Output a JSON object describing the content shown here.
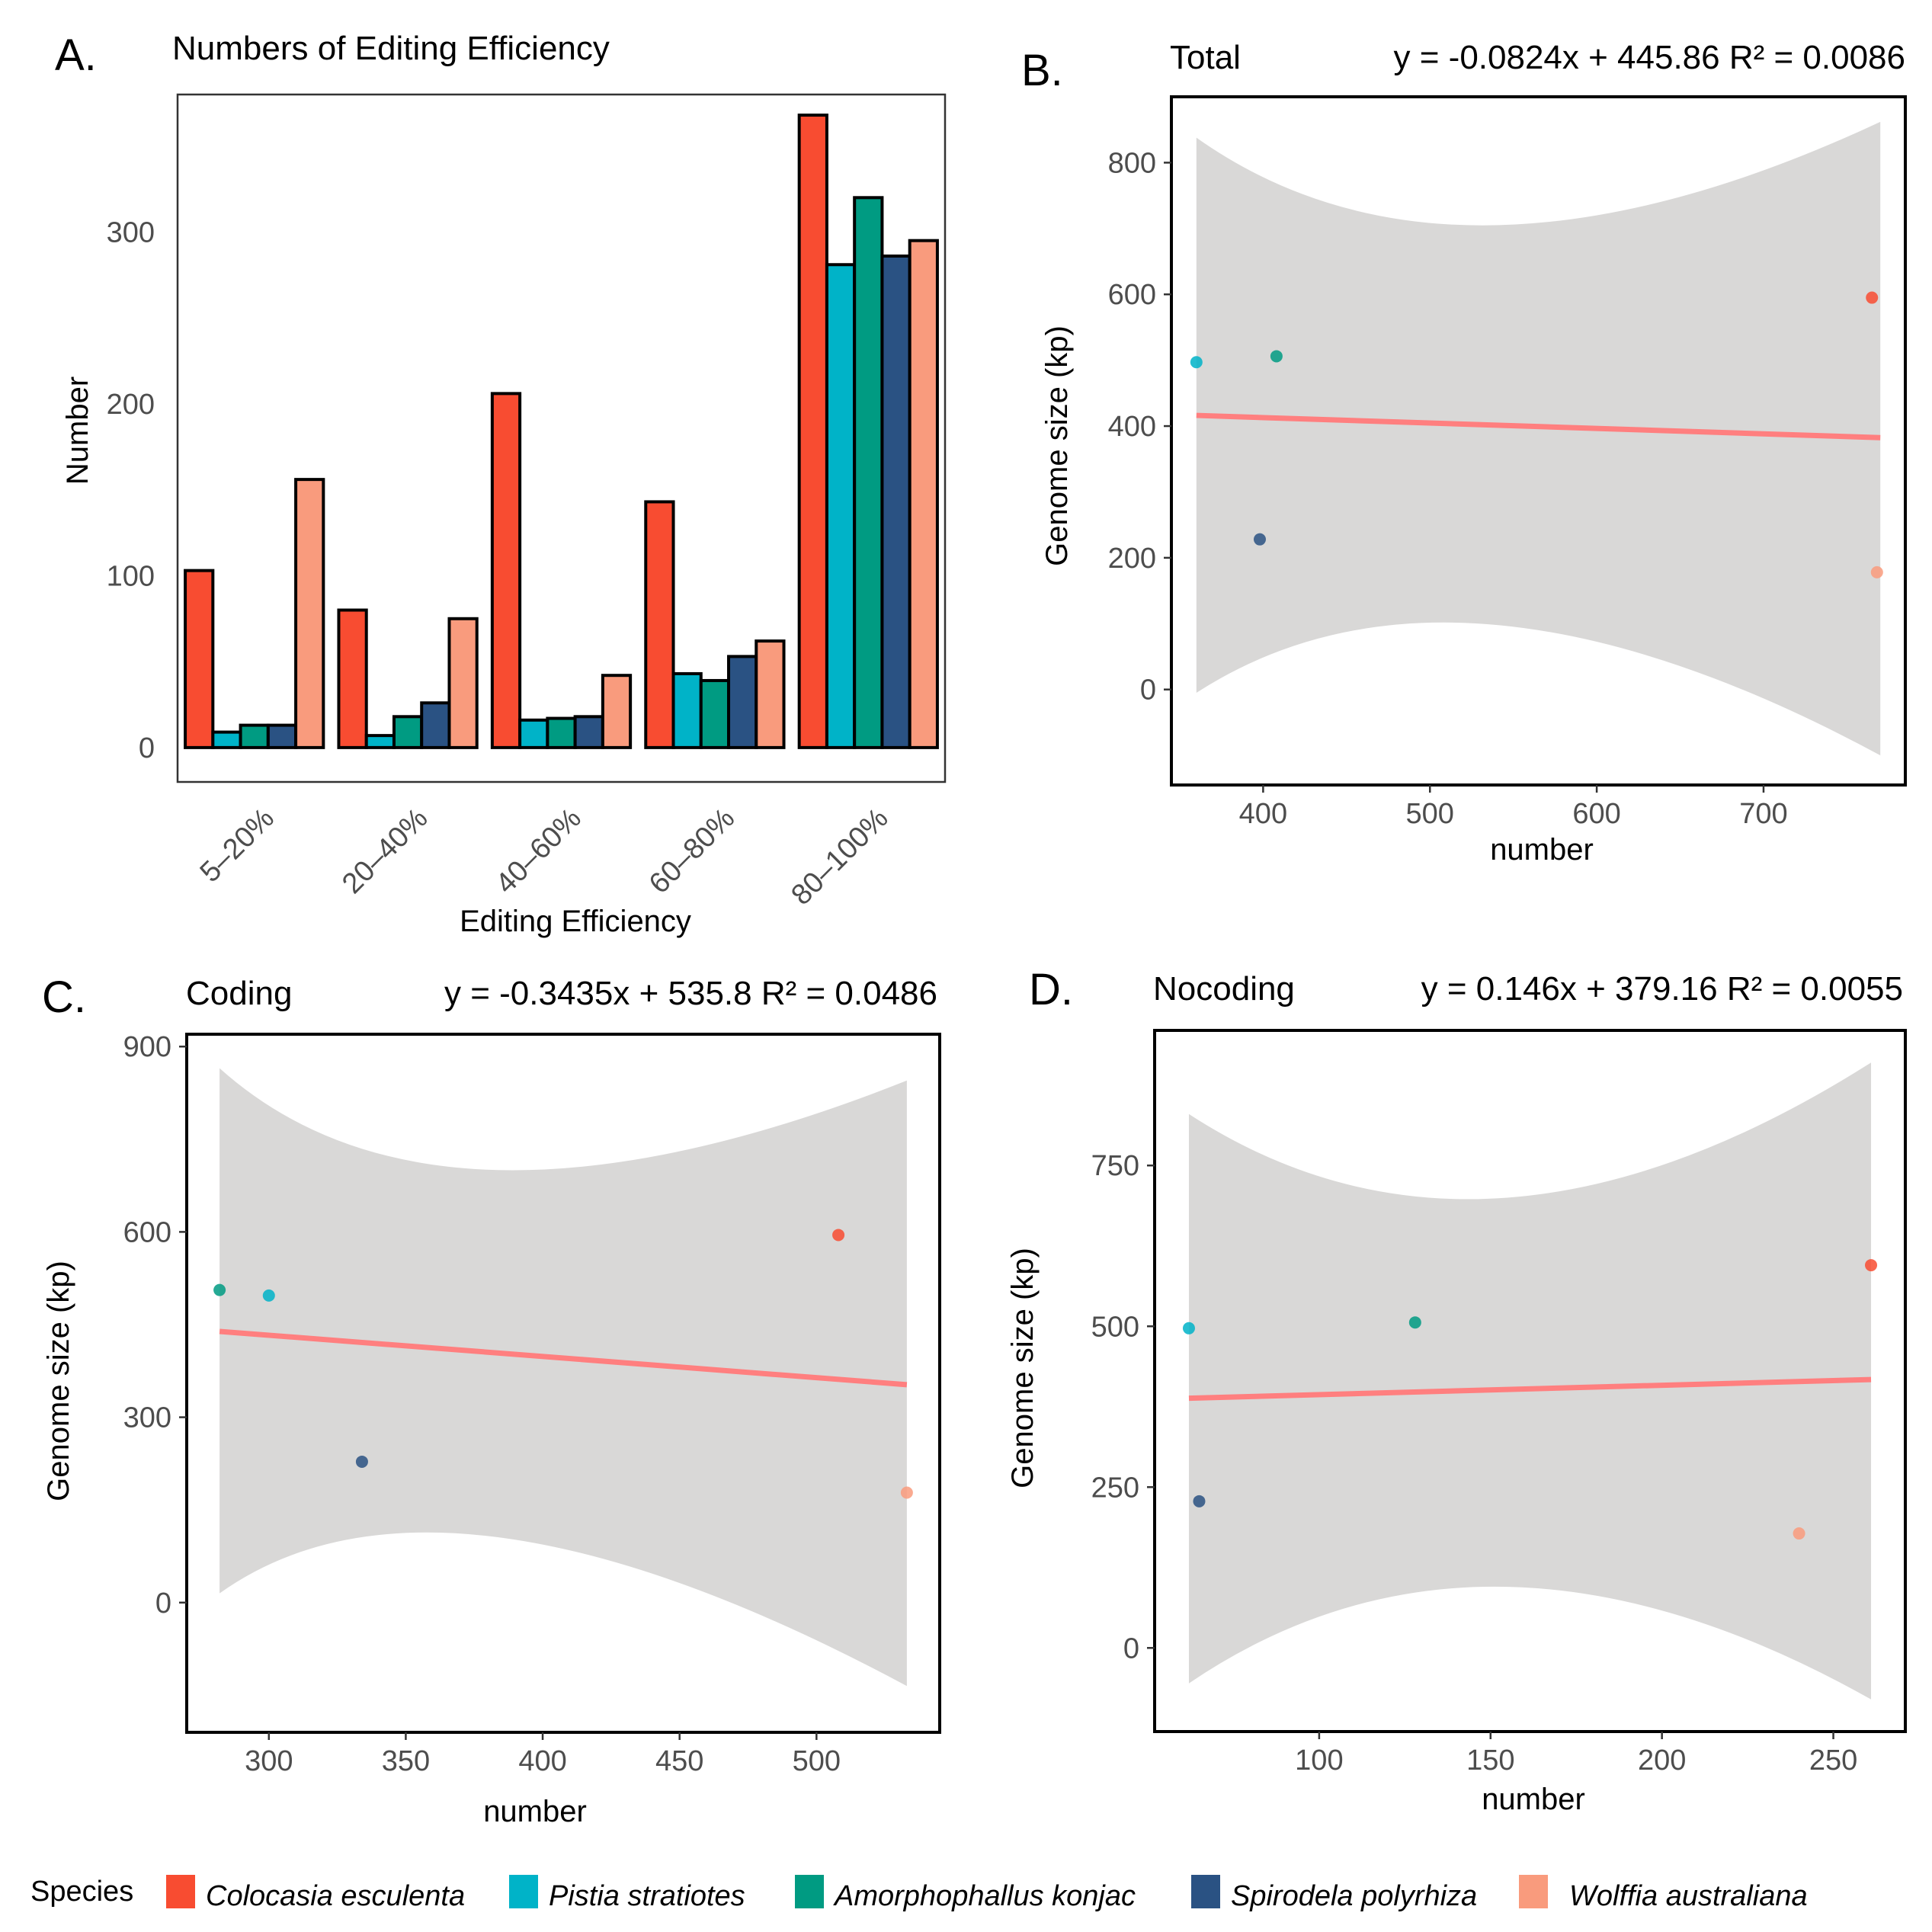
{
  "species": [
    {
      "name": "Colocasia esculenta",
      "color": "#F84C31"
    },
    {
      "name": "Pistia stratiotes",
      "color": "#00B3C8"
    },
    {
      "name": "Amorphophallus konjac",
      "color": "#009B82"
    },
    {
      "name": "Spirodela polyrhiza",
      "color": "#2A5283"
    },
    {
      "name": "Wolffia australiana",
      "color": "#F99B7D"
    }
  ],
  "legend": {
    "title": "Species"
  },
  "chart_data": [
    {
      "id": "A",
      "type": "bar",
      "panel_letter": "A.",
      "title": "Numbers of Editing Efficiency",
      "xlabel": "Editing Efficiency",
      "ylabel": "Number",
      "categories": [
        "5–20%",
        "20–40%",
        "40–60%",
        "60–80%",
        "80–100%"
      ],
      "ylim": [
        -20,
        380
      ],
      "yticks": [
        0,
        100,
        200,
        300
      ],
      "grid": false,
      "legend": "bottom",
      "series": [
        {
          "name": "Colocasia esculenta",
          "values": [
            103,
            80,
            206,
            143,
            368
          ]
        },
        {
          "name": "Pistia stratiotes",
          "values": [
            9,
            7,
            16,
            43,
            281
          ]
        },
        {
          "name": "Amorphophallus konjac",
          "values": [
            13,
            18,
            17,
            39,
            320
          ]
        },
        {
          "name": "Spirodela polyrhiza",
          "values": [
            13,
            26,
            18,
            53,
            286
          ]
        },
        {
          "name": "Wolffia australiana",
          "values": [
            156,
            75,
            42,
            62,
            295
          ]
        }
      ]
    },
    {
      "id": "B",
      "type": "scatter",
      "panel_letter": "B.",
      "title": "Total",
      "equation": "y = -0.0824x + 445.86 R² = 0.0086",
      "xlabel": "number",
      "ylabel": "Genome size (kp)",
      "xlim": [
        345,
        785
      ],
      "ylim": [
        -145,
        900
      ],
      "xticks": [
        400,
        500,
        600,
        700
      ],
      "yticks": [
        0,
        200,
        400,
        600,
        800
      ],
      "grid": false,
      "fit": {
        "slope": -0.0824,
        "intercept": 445.86,
        "r2": 0.0086,
        "x_range": [
          360,
          770
        ]
      },
      "ci_band": {
        "upper": [
          838,
          705,
          862
        ],
        "lower": [
          -5,
          98,
          -100
        ],
        "x": [
          360,
          540,
          770
        ]
      },
      "points": [
        {
          "species": "Pistia stratiotes",
          "x": 360,
          "y": 497
        },
        {
          "species": "Amorphophallus konjac",
          "x": 408,
          "y": 506
        },
        {
          "species": "Spirodela polyrhiza",
          "x": 398,
          "y": 228
        },
        {
          "species": "Colocasia esculenta",
          "x": 765,
          "y": 595
        },
        {
          "species": "Wolffia australiana",
          "x": 768,
          "y": 178
        }
      ]
    },
    {
      "id": "C",
      "type": "scatter",
      "panel_letter": "C.",
      "title": "Coding",
      "equation": "y = -0.3435x + 535.8 R² = 0.0486",
      "xlabel": "number",
      "ylabel": "Genome size (kp)",
      "xlim": [
        270,
        545
      ],
      "ylim": [
        -210,
        920
      ],
      "xticks": [
        300,
        350,
        400,
        450,
        500
      ],
      "yticks": [
        0,
        300,
        600,
        900
      ],
      "grid": false,
      "fit": {
        "slope": -0.3435,
        "intercept": 535.8,
        "r2": 0.0486,
        "x_range": [
          282,
          533
        ]
      },
      "ci_band": {
        "upper": [
          865,
          700,
          845
        ],
        "lower": [
          15,
          105,
          -135
        ],
        "x": [
          282,
          385,
          533
        ]
      },
      "points": [
        {
          "species": "Amorphophallus konjac",
          "x": 282,
          "y": 506
        },
        {
          "species": "Pistia stratiotes",
          "x": 300,
          "y": 497
        },
        {
          "species": "Spirodela polyrhiza",
          "x": 334,
          "y": 228
        },
        {
          "species": "Colocasia esculenta",
          "x": 508,
          "y": 595
        },
        {
          "species": "Wolffia australiana",
          "x": 533,
          "y": 178
        }
      ]
    },
    {
      "id": "D",
      "type": "scatter",
      "panel_letter": "D.",
      "title": "Nocoding",
      "equation": "y = 0.146x + 379.16 R² = 0.0055",
      "xlabel": "number",
      "ylabel": "Genome size (kp)",
      "xlim": [
        52,
        271
      ],
      "ylim": [
        -130,
        960
      ],
      "xticks": [
        100,
        150,
        200,
        250
      ],
      "yticks": [
        0,
        250,
        500,
        750
      ],
      "grid": false,
      "fit": {
        "slope": 0.146,
        "intercept": 379.16,
        "r2": 0.0055,
        "x_range": [
          62,
          261
        ]
      },
      "ci_band": {
        "upper": [
          830,
          700,
          910
        ],
        "lower": [
          -55,
          95,
          -80
        ],
        "x": [
          62,
          155,
          261
        ]
      },
      "points": [
        {
          "species": "Pistia stratiotes",
          "x": 62,
          "y": 497
        },
        {
          "species": "Spirodela polyrhiza",
          "x": 65,
          "y": 228
        },
        {
          "species": "Amorphophallus konjac",
          "x": 128,
          "y": 506
        },
        {
          "species": "Wolffia australiana",
          "x": 240,
          "y": 178
        },
        {
          "species": "Colocasia esculenta",
          "x": 261,
          "y": 595
        }
      ]
    }
  ],
  "colors": {
    "fit_line": "#FF7F7F",
    "ci_band": "#D9D8D7",
    "axis": "#000000",
    "tick_text": "#4D4D4D"
  }
}
